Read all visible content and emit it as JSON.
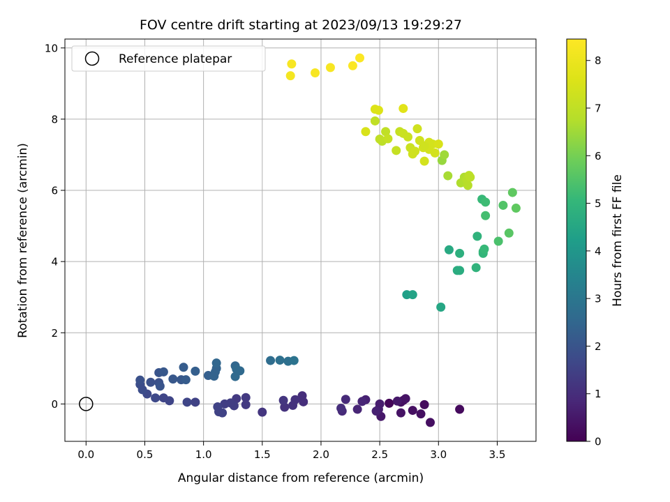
{
  "chart_data": {
    "type": "scatter",
    "title": "FOV centre drift starting at 2023/09/13 19:29:27",
    "xlabel": "Angular distance from reference (arcmin)",
    "ylabel": "Rotation from reference (arcmin)",
    "xlim": [
      -0.18,
      3.83
    ],
    "ylim": [
      -1.05,
      10.25
    ],
    "xticks": [
      "0.0",
      "0.5",
      "1.0",
      "1.5",
      "2.0",
      "2.5",
      "3.0",
      "3.5"
    ],
    "yticks": [
      "0",
      "2",
      "4",
      "6",
      "8",
      "10"
    ],
    "grid": true,
    "legend": {
      "placement": "top-left",
      "entries": [
        "Reference platepar"
      ]
    },
    "colorbar": {
      "label": "Hours from first FF file",
      "range": [
        0,
        8.45
      ],
      "ticks": [
        "0",
        "1",
        "2",
        "3",
        "4",
        "5",
        "6",
        "7",
        "8"
      ],
      "colormap": "viridis"
    },
    "reference_point": {
      "x": 0.0,
      "y": 0.0
    },
    "points": [
      [
        2.58,
        0.02,
        0.1
      ],
      [
        2.7,
        0.1,
        0.2
      ],
      [
        2.93,
        -0.52,
        0.3
      ],
      [
        3.18,
        -0.15,
        0.2
      ],
      [
        2.88,
        -0.02,
        0.2
      ],
      [
        2.85,
        -0.28,
        0.3
      ],
      [
        2.78,
        -0.18,
        0.3
      ],
      [
        2.68,
        -0.25,
        0.4
      ],
      [
        2.68,
        0.05,
        0.3
      ],
      [
        2.72,
        0.15,
        0.4
      ],
      [
        2.65,
        0.08,
        0.5
      ],
      [
        2.51,
        -0.35,
        0.5
      ],
      [
        2.5,
        0.0,
        0.6
      ],
      [
        2.49,
        -0.15,
        0.6
      ],
      [
        2.47,
        -0.2,
        0.7
      ],
      [
        2.38,
        0.12,
        0.7
      ],
      [
        2.35,
        0.07,
        0.8
      ],
      [
        2.31,
        -0.15,
        0.8
      ],
      [
        2.21,
        0.13,
        0.9
      ],
      [
        2.18,
        -0.2,
        0.9
      ],
      [
        2.17,
        -0.12,
        1.0
      ],
      [
        1.85,
        0.06,
        1.0
      ],
      [
        1.84,
        0.23,
        1.0
      ],
      [
        1.78,
        0.12,
        1.1
      ],
      [
        1.76,
        -0.04,
        1.1
      ],
      [
        1.69,
        -0.09,
        1.1
      ],
      [
        1.68,
        0.1,
        1.2
      ],
      [
        1.5,
        -0.23,
        1.2
      ],
      [
        1.36,
        0.18,
        1.3
      ],
      [
        1.36,
        -0.02,
        1.3
      ],
      [
        1.28,
        0.15,
        1.3
      ],
      [
        1.26,
        -0.05,
        1.4
      ],
      [
        1.23,
        0.03,
        1.4
      ],
      [
        1.18,
        0.0,
        1.4
      ],
      [
        1.16,
        -0.25,
        1.5
      ],
      [
        1.13,
        -0.22,
        1.5
      ],
      [
        1.12,
        -0.08,
        1.5
      ],
      [
        0.93,
        0.05,
        1.5
      ],
      [
        0.86,
        0.05,
        1.6
      ],
      [
        0.71,
        0.09,
        1.6
      ],
      [
        0.66,
        0.17,
        1.6
      ],
      [
        0.59,
        0.17,
        1.7
      ],
      [
        0.52,
        0.28,
        1.7
      ],
      [
        0.48,
        0.4,
        1.8
      ],
      [
        0.46,
        0.55,
        1.8
      ],
      [
        0.46,
        0.67,
        1.9
      ],
      [
        0.55,
        0.61,
        1.9
      ],
      [
        0.62,
        0.6,
        1.9
      ],
      [
        0.63,
        0.5,
        2.0
      ],
      [
        0.62,
        0.88,
        2.0
      ],
      [
        0.66,
        0.9,
        2.1
      ],
      [
        0.74,
        0.7,
        2.1
      ],
      [
        0.81,
        0.68,
        2.1
      ],
      [
        0.85,
        0.68,
        2.2
      ],
      [
        0.83,
        1.03,
        2.2
      ],
      [
        0.93,
        0.92,
        2.3
      ],
      [
        1.04,
        0.8,
        2.3
      ],
      [
        1.09,
        0.78,
        2.4
      ],
      [
        1.1,
        0.9,
        2.4
      ],
      [
        1.11,
        1.0,
        2.4
      ],
      [
        1.11,
        1.15,
        2.5
      ],
      [
        1.27,
        1.07,
        2.5
      ],
      [
        1.28,
        0.98,
        2.6
      ],
      [
        1.27,
        0.77,
        2.6
      ],
      [
        1.31,
        0.93,
        2.6
      ],
      [
        1.57,
        1.22,
        2.7
      ],
      [
        1.65,
        1.23,
        2.8
      ],
      [
        1.72,
        1.2,
        2.8
      ],
      [
        1.77,
        1.22,
        2.9
      ],
      [
        2.73,
        3.07,
        4.3
      ],
      [
        2.78,
        3.07,
        4.4
      ],
      [
        3.02,
        2.72,
        4.5
      ],
      [
        3.09,
        4.33,
        4.6
      ],
      [
        3.16,
        3.75,
        4.7
      ],
      [
        3.18,
        3.75,
        4.7
      ],
      [
        3.18,
        4.23,
        4.8
      ],
      [
        3.32,
        3.83,
        4.9
      ],
      [
        3.33,
        4.71,
        4.9
      ],
      [
        3.38,
        4.28,
        5.0
      ],
      [
        3.38,
        4.23,
        5.0
      ],
      [
        3.39,
        4.35,
        5.1
      ],
      [
        3.37,
        5.75,
        5.1
      ],
      [
        3.4,
        5.67,
        5.2
      ],
      [
        3.4,
        5.29,
        5.3
      ],
      [
        3.51,
        4.57,
        5.4
      ],
      [
        3.55,
        5.58,
        5.5
      ],
      [
        3.6,
        4.8,
        5.6
      ],
      [
        3.63,
        5.94,
        5.7
      ],
      [
        3.66,
        5.5,
        5.7
      ],
      [
        3.03,
        6.84,
        6.4
      ],
      [
        3.05,
        7.0,
        6.5
      ],
      [
        3.08,
        6.41,
        6.6
      ],
      [
        3.19,
        6.21,
        6.7
      ],
      [
        3.22,
        6.37,
        6.7
      ],
      [
        3.24,
        6.3,
        6.8
      ],
      [
        3.25,
        6.14,
        6.8
      ],
      [
        3.26,
        6.42,
        6.9
      ],
      [
        3.27,
        6.37,
        6.9
      ],
      [
        2.52,
        7.38,
        6.9
      ],
      [
        2.55,
        7.65,
        7.0
      ],
      [
        2.46,
        7.95,
        7.0
      ],
      [
        2.5,
        7.44,
        7.0
      ],
      [
        2.57,
        7.45,
        7.1
      ],
      [
        2.64,
        7.12,
        7.1
      ],
      [
        2.67,
        7.65,
        7.1
      ],
      [
        2.7,
        7.6,
        7.2
      ],
      [
        2.74,
        7.5,
        7.2
      ],
      [
        2.76,
        7.2,
        7.2
      ],
      [
        2.78,
        7.02,
        7.3
      ],
      [
        2.8,
        7.1,
        7.3
      ],
      [
        2.82,
        7.73,
        7.3
      ],
      [
        2.84,
        7.4,
        7.3
      ],
      [
        2.87,
        7.2,
        7.4
      ],
      [
        2.88,
        6.82,
        7.4
      ],
      [
        2.92,
        7.15,
        7.4
      ],
      [
        2.95,
        7.3,
        7.4
      ],
      [
        2.97,
        7.05,
        7.4
      ],
      [
        3.0,
        7.3,
        7.5
      ],
      [
        2.92,
        7.35,
        7.4
      ],
      [
        2.88,
        7.25,
        7.3
      ],
      [
        2.38,
        7.65,
        7.5
      ],
      [
        2.46,
        8.28,
        7.6
      ],
      [
        2.49,
        8.25,
        7.6
      ],
      [
        2.7,
        8.3,
        7.7
      ],
      [
        1.74,
        9.22,
        8.2
      ],
      [
        1.75,
        9.55,
        8.3
      ],
      [
        1.95,
        9.3,
        8.3
      ],
      [
        2.08,
        9.45,
        8.3
      ],
      [
        2.27,
        9.5,
        8.4
      ],
      [
        2.33,
        9.72,
        8.4
      ]
    ]
  }
}
